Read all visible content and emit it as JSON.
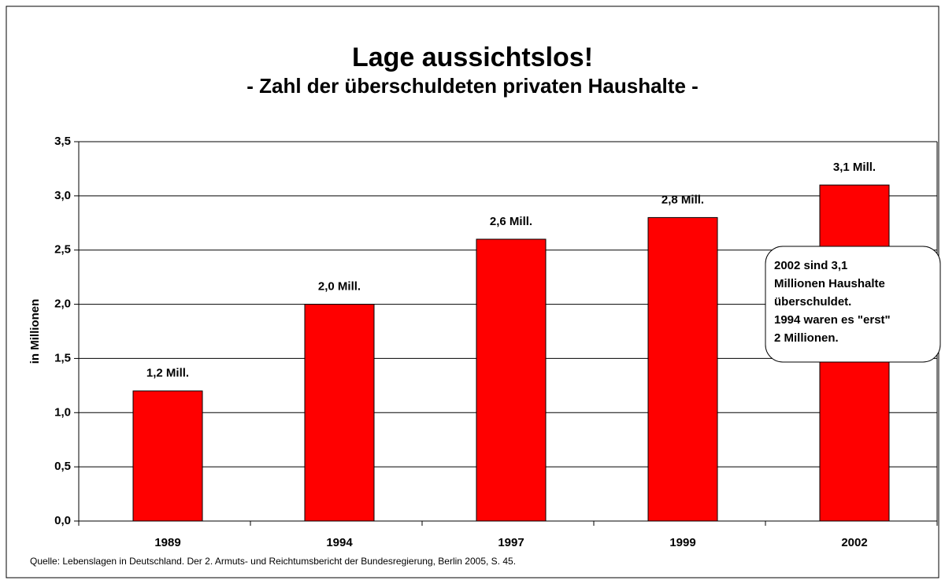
{
  "chart_data": {
    "type": "bar",
    "title": "Lage aussichtslos!",
    "subtitle": "- Zahl der überschuldeten privaten Haushalte -",
    "y_label": "in Millionen",
    "categories": [
      "1989",
      "1994",
      "1997",
      "1999",
      "2002"
    ],
    "values": [
      1.2,
      2.0,
      2.6,
      2.8,
      3.1
    ],
    "value_labels": [
      "1,2 Mill.",
      "2,0 Mill.",
      "2,6 Mill.",
      "2,8 Mill.",
      "3,1 Mill."
    ],
    "color": "#ff0000",
    "ylim": [
      0,
      3.5
    ],
    "yticks": [
      {
        "value": 0,
        "label": "0,0"
      },
      {
        "value": 0.5,
        "label": "0,5"
      },
      {
        "value": 1,
        "label": "1,0"
      },
      {
        "value": 1.5,
        "label": "1,5"
      },
      {
        "value": 2,
        "label": "2,0"
      },
      {
        "value": 2.5,
        "label": "2,5"
      },
      {
        "value": 3,
        "label": "3,0"
      },
      {
        "value": 3.5,
        "label": "3,5"
      }
    ],
    "grid": true,
    "annotation": [
      "2002 sind 3,1",
      "Millionen Haushalte",
      "überschuldet.",
      "1994 waren es \"erst\"",
      "2 Millionen."
    ],
    "source": "Quelle: Lebenslagen in Deutschland. Der 2. Armuts- und Reichtumsbericht der Bundesregierung, Berlin 2005, S. 45."
  }
}
